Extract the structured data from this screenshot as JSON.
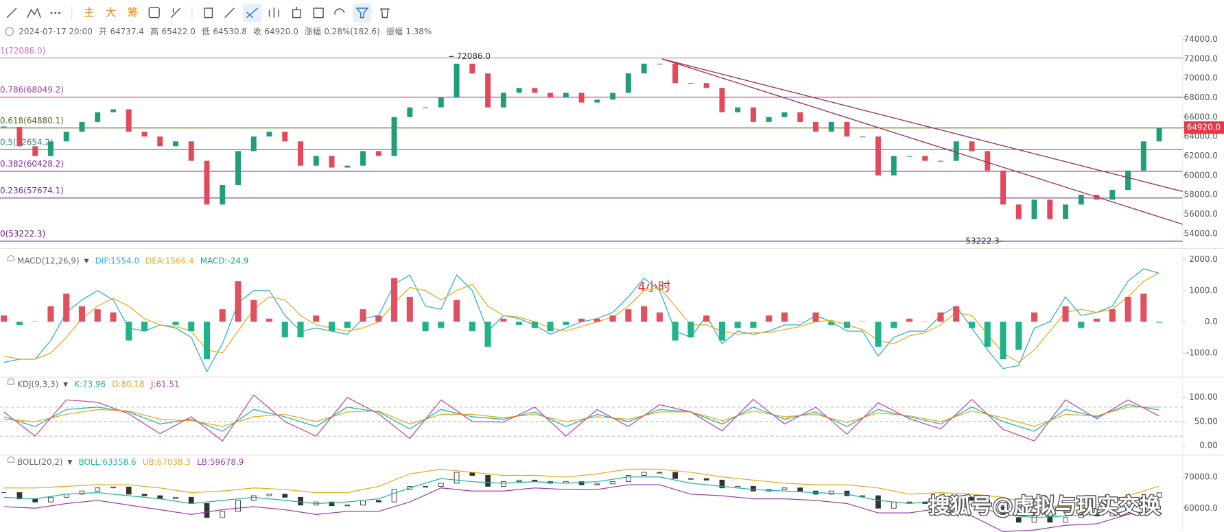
{
  "toolbar": {
    "buttons": [
      "主",
      "大",
      "筹"
    ]
  },
  "info": {
    "date": "2024-07-17 20:00",
    "items": [
      "开",
      "64737.4",
      "高",
      "65422.0",
      "低",
      "64530.8",
      "收",
      "64920.0",
      "涨幅",
      "0.28%(182.6)",
      "振幅",
      "1.38%"
    ]
  },
  "annotation": "4小时",
  "watermark": "搜狐号@虚拟与现实交换",
  "chart_data": [
    {
      "type": "candlestick",
      "values": [
        65000,
        63000,
        62000,
        63500,
        64500,
        65500,
        66500,
        66800,
        64500,
        64000,
        63000,
        63500,
        61500,
        57000,
        59000,
        62500,
        64000,
        64500,
        63500,
        61000,
        62000,
        60800,
        61000,
        62500,
        62000,
        66000,
        67000,
        67000,
        68000,
        71500,
        70500,
        67000,
        68500,
        69000,
        68500,
        68000,
        68500,
        67500,
        67800,
        68500,
        70500,
        71500,
        71500,
        69500,
        69500,
        69000,
        66500,
        67000,
        65500,
        66000,
        66500,
        65500,
        64500,
        65500,
        64000,
        64000,
        60000,
        62000,
        62000,
        61500,
        61500,
        63500,
        62500,
        60500,
        57000,
        55500,
        57500,
        55500,
        57000,
        58000,
        57500,
        58500,
        60500,
        63500,
        64920
      ],
      "up_color": "#1f9e78",
      "down_color": "#e2495b",
      "ylim": [
        52960,
        74400
      ],
      "yticks": [
        {
          "value": 54000,
          "label": "54000.0"
        },
        {
          "value": 56000,
          "label": "56000.0"
        },
        {
          "value": 58000,
          "label": "58000.0"
        },
        {
          "value": 60000,
          "label": "60000.0"
        },
        {
          "value": 62000,
          "label": "62000.0"
        },
        {
          "value": 64000,
          "label": "64000.0"
        },
        {
          "value": 66000,
          "label": "66000.0"
        },
        {
          "value": 68000,
          "label": "68000.0"
        },
        {
          "value": 70000,
          "label": "70000.0"
        },
        {
          "value": 72000,
          "label": "72000.0"
        },
        {
          "value": 74000,
          "label": "74000.0"
        }
      ],
      "grid": false,
      "levels": [
        {
          "value": 72086,
          "label": "1(72086.0)",
          "color": "#c071c0"
        },
        {
          "value": 68049.2,
          "label": "0.786(68049.2)",
          "color": "#a0409e"
        },
        {
          "value": 64880.1,
          "label": "0.618(64880.1)",
          "color": "#4d6b1f"
        },
        {
          "value": 62654.2,
          "label": "0.5(62654.2)",
          "color": "#3b8585"
        },
        {
          "value": 60428.2,
          "label": "0.382(60428.2)",
          "color": "#8a24a0"
        },
        {
          "value": 57674.1,
          "label": "0.236(57674.1)",
          "color": "#7030a0"
        },
        {
          "value": 53222.3,
          "label": "0(53222.3)",
          "color": "#6a1a8a"
        }
      ],
      "last_price": {
        "value": 64920,
        "label": "64920.0",
        "color": "#e8374b"
      },
      "annotations": [
        {
          "value": 72086,
          "label": "72086.0"
        },
        {
          "value": 53222.3,
          "label": "53222.3"
        }
      ]
    },
    {
      "type": "macd",
      "title": "MACD(12,26,9)",
      "ylim": [
        -1650,
        2175
      ],
      "yticks": [
        {
          "value": -1000,
          "label": "-1000.0"
        },
        {
          "value": 0,
          "label": "0.0"
        },
        {
          "value": 1000,
          "label": "1000.0"
        },
        {
          "value": 2000,
          "label": "2000.0"
        }
      ],
      "series": [
        {
          "name": "DIF:1554.0",
          "color": "#2aaed6",
          "values": [
            -1300,
            -1200,
            -1200,
            -600,
            300,
            700,
            1000,
            700,
            -200,
            -300,
            -100,
            -200,
            -500,
            -1600,
            -700,
            600,
            1000,
            1000,
            200,
            -300,
            -200,
            -300,
            -400,
            100,
            200,
            1200,
            1500,
            500,
            400,
            1500,
            1000,
            -300,
            200,
            100,
            -100,
            -400,
            -200,
            0,
            100,
            300,
            800,
            1400,
            1000,
            -300,
            -500,
            200,
            -700,
            -300,
            -400,
            -300,
            -100,
            -100,
            200,
            0,
            -300,
            -300,
            -1100,
            -500,
            -300,
            -300,
            200,
            500,
            -200,
            -900,
            -1500,
            -1400,
            -200,
            0,
            800,
            200,
            300,
            500,
            1300,
            1700,
            1554
          ]
        },
        {
          "name": "DEA:1566.4",
          "color": "#e4ab1c",
          "values": [
            -1100,
            -1200,
            -1200,
            -1000,
            -500,
            100,
            500,
            750,
            500,
            100,
            -100,
            -150,
            -300,
            -900,
            -1000,
            -300,
            400,
            800,
            700,
            200,
            -100,
            -200,
            -300,
            -200,
            0,
            600,
            1100,
            1000,
            700,
            1000,
            1200,
            500,
            200,
            150,
            0,
            -200,
            -300,
            -150,
            0,
            150,
            500,
            1000,
            1100,
            500,
            -100,
            -100,
            -300,
            -400,
            -350,
            -350,
            -250,
            -150,
            0,
            50,
            -100,
            -250,
            -600,
            -700,
            -450,
            -350,
            -100,
            300,
            200,
            -400,
            -1000,
            -1300,
            -900,
            -300,
            300,
            400,
            300,
            400,
            800,
            1300,
            1566.4
          ]
        },
        {
          "name": "MACD:-24.9",
          "color": "#14a085",
          "up_color": "#e0505e",
          "down_color": "#1fb38a",
          "bars": true,
          "values": [
            200,
            -100,
            0,
            500,
            900,
            500,
            400,
            300,
            -600,
            -300,
            0,
            -100,
            -300,
            -1200,
            400,
            1300,
            700,
            100,
            -500,
            -500,
            200,
            -300,
            -200,
            400,
            200,
            1400,
            800,
            -300,
            -200,
            700,
            -300,
            -800,
            100,
            -100,
            -200,
            -300,
            -100,
            100,
            100,
            200,
            400,
            500,
            300,
            -600,
            -500,
            200,
            -600,
            -200,
            -200,
            200,
            300,
            0,
            300,
            -100,
            -200,
            0,
            -800,
            -200,
            100,
            0,
            300,
            500,
            -200,
            -800,
            -1200,
            -900,
            300,
            0,
            500,
            -200,
            100,
            400,
            800,
            900,
            -24.9
          ]
        }
      ]
    },
    {
      "type": "kdj",
      "title": "KDJ(9,3,3)",
      "ylim": [
        -11.3,
        114.5
      ],
      "yticks": [
        {
          "value": 0,
          "label": "0.00"
        },
        {
          "value": 50,
          "label": "50.00"
        },
        {
          "value": 100,
          "label": "100.00"
        }
      ],
      "guides": [
        20,
        50,
        80
      ],
      "series": [
        {
          "name": "K:73.96",
          "color": "#1fb3a0",
          "values": [
            60,
            40,
            75,
            80,
            70,
            45,
            55,
            30,
            75,
            60,
            40,
            80,
            70,
            35,
            75,
            60,
            55,
            70,
            40,
            65,
            50,
            75,
            70,
            45,
            80,
            55,
            70,
            40,
            75,
            60,
            45,
            80,
            50,
            30,
            75,
            60,
            85,
            73.96
          ]
        },
        {
          "name": "D:80.18",
          "color": "#e4ab1c",
          "values": [
            55,
            50,
            65,
            75,
            72,
            55,
            52,
            40,
            60,
            65,
            50,
            70,
            72,
            45,
            65,
            65,
            58,
            65,
            50,
            60,
            55,
            70,
            70,
            52,
            72,
            60,
            65,
            48,
            68,
            62,
            50,
            72,
            58,
            40,
            65,
            62,
            80,
            80.18
          ]
        },
        {
          "name": "J:61.51",
          "color": "#c0479e",
          "values": [
            70,
            20,
            95,
            90,
            66,
            25,
            60,
            10,
            105,
            50,
            20,
            100,
            66,
            15,
            95,
            50,
            49,
            80,
            20,
            75,
            40,
            85,
            70,
            31,
            96,
            45,
            80,
            24,
            89,
            56,
            35,
            96,
            34,
            10,
            95,
            56,
            95,
            61.51
          ]
        }
      ]
    },
    {
      "type": "boll",
      "title": "BOLL(20,2)",
      "ylim": [
        52500,
        73250
      ],
      "yticks": [
        {
          "value": 60000,
          "label": "60000.0"
        },
        {
          "value": 70000,
          "label": "70000.0"
        }
      ],
      "candle_color": "#333333",
      "series": [
        {
          "name": "BOLL:63358.6",
          "color": "#1fb3a0",
          "values": [
            63500,
            63000,
            64500,
            65000,
            64000,
            63000,
            61500,
            62500,
            63500,
            62500,
            61500,
            62000,
            63000,
            66500,
            69500,
            68500,
            68000,
            68500,
            68000,
            68500,
            70000,
            70000,
            68000,
            67000,
            66000,
            65500,
            65000,
            64500,
            62500,
            61500,
            62500,
            61000,
            58000,
            57000,
            57500,
            58000,
            61000,
            63358.6
          ]
        },
        {
          "name": "UB:67038.3",
          "color": "#e4ab1c",
          "values": [
            66500,
            66500,
            67000,
            67500,
            67500,
            66500,
            65000,
            65500,
            66500,
            66000,
            65000,
            65000,
            67000,
            71000,
            72500,
            71500,
            70500,
            70500,
            70000,
            71000,
            72500,
            72500,
            71500,
            70000,
            69000,
            68000,
            67500,
            67500,
            66500,
            64500,
            65000,
            64500,
            63500,
            61000,
            60500,
            61000,
            64000,
            67038.3
          ]
        },
        {
          "name": "LB:59678.9",
          "color": "#9a3fb0",
          "values": [
            60500,
            60000,
            61500,
            62500,
            61000,
            59500,
            58000,
            59500,
            60500,
            59500,
            58000,
            59000,
            59000,
            62000,
            66500,
            65500,
            65500,
            66500,
            66000,
            66000,
            67500,
            67500,
            64500,
            64000,
            63000,
            63000,
            62500,
            61500,
            58500,
            58500,
            60000,
            57500,
            52500,
            53000,
            54500,
            55000,
            58000,
            59678.9
          ]
        }
      ]
    }
  ]
}
